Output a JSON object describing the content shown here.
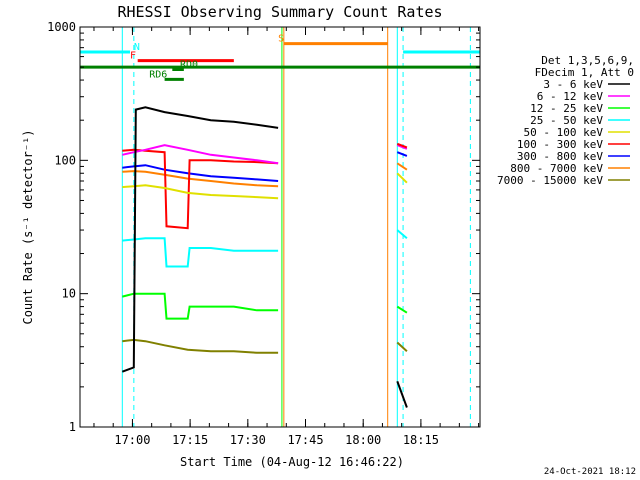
{
  "chart_data": {
    "type": "line",
    "title": "RHESSI Observing Summary Count Rates",
    "xlabel": "Start Time (04-Aug-12 16:46:22)",
    "ylabel": "Count Rate (s⁻¹ detector⁻¹)",
    "yscale": "log",
    "ylim": [
      1,
      1000
    ],
    "xlim_minutes": [
      0,
      104
    ],
    "x_tick_labels": [
      "17:00",
      "17:15",
      "17:30",
      "17:45",
      "18:00",
      "18:15"
    ],
    "x_tick_minutes": [
      13.633,
      28.633,
      43.633,
      58.633,
      73.633,
      88.633
    ],
    "y_tick_labels": [
      "1",
      "10",
      "100",
      "1000"
    ],
    "y_tick_values": [
      1,
      10,
      100,
      1000
    ],
    "grid": false,
    "legend": {
      "position": "right",
      "header": [
        "Det 1,3,5,6,9,",
        "FDecim 1, Att 0"
      ]
    },
    "series": [
      {
        "name": "3 - 6 keV",
        "color": "#000000",
        "x": [
          11,
          14,
          14.5,
          17,
          22,
          28,
          34,
          40,
          46,
          51.5
        ],
        "y": [
          2.6,
          2.8,
          240,
          250,
          230,
          215,
          200,
          195,
          185,
          175
        ]
      },
      {
        "name": "6 - 12 keV",
        "color": "#ff00ff",
        "x": [
          11,
          14,
          17,
          22,
          28,
          34,
          40,
          46,
          51.5
        ],
        "y": [
          110,
          115,
          120,
          130,
          120,
          110,
          105,
          100,
          95
        ]
      },
      {
        "name": "12 - 25 keV",
        "color": "#00ff00",
        "x": [
          11,
          14,
          16,
          22,
          22.5,
          28,
          28.5,
          34,
          40,
          46,
          51.5
        ],
        "y": [
          9.5,
          10,
          10,
          10,
          6.5,
          6.5,
          8,
          8,
          8,
          7.5,
          7.5
        ]
      },
      {
        "name": "25 - 50 keV",
        "color": "#00ffff",
        "x": [
          11,
          14,
          17,
          22,
          22.5,
          28,
          28.5,
          34,
          40,
          46,
          51.5
        ],
        "y": [
          25,
          25.5,
          26,
          26,
          16,
          16,
          22,
          22,
          21,
          21,
          21
        ]
      },
      {
        "name": "50 - 100 keV",
        "color": "#e0e000",
        "x": [
          11,
          14,
          17,
          22,
          28,
          34,
          40,
          46,
          51.5
        ],
        "y": [
          63,
          64,
          65,
          62,
          57,
          55,
          54,
          53,
          52
        ]
      },
      {
        "name": "100 - 300 keV",
        "color": "#ff0000",
        "x": [
          11,
          14,
          17,
          22,
          22.5,
          28,
          28.5,
          34,
          40,
          46,
          51.5
        ],
        "y": [
          118,
          120,
          118,
          115,
          32,
          31,
          100,
          100,
          98,
          97,
          95
        ]
      },
      {
        "name": "300 - 800 keV",
        "color": "#0000ff",
        "x": [
          11,
          14,
          17,
          22,
          28,
          34,
          40,
          46,
          51.5
        ],
        "y": [
          88,
          90,
          92,
          85,
          80,
          76,
          74,
          72,
          70
        ]
      },
      {
        "name": "800 - 7000 keV",
        "color": "#ff8000",
        "x": [
          11,
          14,
          17,
          22,
          28,
          34,
          40,
          46,
          51.5
        ],
        "y": [
          82,
          83,
          82,
          78,
          73,
          70,
          67,
          65,
          64
        ]
      },
      {
        "name": "7000 - 15000 keV",
        "color": "#808000",
        "x": [
          11,
          14,
          17,
          22,
          28,
          34,
          40,
          46,
          51.5
        ],
        "y": [
          4.4,
          4.5,
          4.4,
          4.1,
          3.8,
          3.7,
          3.7,
          3.6,
          3.6
        ]
      }
    ],
    "second_segment": [
      {
        "name": "3 - 6 keV",
        "x": [
          82.5,
          85
        ],
        "y": [
          2.2,
          1.4
        ]
      },
      {
        "name": "6 - 12 keV",
        "x": [
          82.5,
          85
        ],
        "y": [
          130,
          122
        ]
      },
      {
        "name": "12 - 25 keV",
        "x": [
          82.5,
          85
        ],
        "y": [
          8,
          7.2
        ]
      },
      {
        "name": "25 - 50 keV",
        "x": [
          82.5,
          85
        ],
        "y": [
          30,
          26
        ]
      },
      {
        "name": "50 - 100 keV",
        "x": [
          82.5,
          85
        ],
        "y": [
          80,
          68
        ]
      },
      {
        "name": "100 - 300 keV",
        "x": [
          82.5,
          85
        ],
        "y": [
          133,
          125
        ]
      },
      {
        "name": "300 - 800 keV",
        "x": [
          82.5,
          85
        ],
        "y": [
          115,
          108
        ]
      },
      {
        "name": "800 - 7000 keV",
        "x": [
          82.5,
          85
        ],
        "y": [
          95,
          85
        ]
      },
      {
        "name": "7000 - 15000 keV",
        "x": [
          82.5,
          85
        ],
        "y": [
          4.3,
          3.7
        ]
      }
    ],
    "flag_bars": [
      {
        "label": "N",
        "color": "#00ffff",
        "segments": [
          [
            0,
            13
          ],
          [
            84,
            104
          ]
        ],
        "y": 650,
        "label_x": 14
      },
      {
        "label": "F",
        "color": "#ff0000",
        "segments": [
          [
            15,
            40
          ]
        ],
        "y": 560,
        "label_x": 13
      },
      {
        "label": "S",
        "color": "#ff8000",
        "segments": [
          [
            53,
            80
          ]
        ],
        "y": 750,
        "label_x": 51.5
      },
      {
        "label": "RD0",
        "color": "#008000",
        "segments": [
          [
            24,
            27
          ]
        ],
        "y": 480,
        "label_x": 26
      },
      {
        "label": "RD6",
        "color": "#008000",
        "segments": [
          [
            22,
            27
          ]
        ],
        "y": 405,
        "label_x": 18
      },
      {
        "label": "",
        "color": "#008000",
        "segments": [
          [
            0,
            104
          ]
        ],
        "y": 500,
        "label_x": 0
      }
    ],
    "vertical_markers": [
      {
        "x": 14,
        "color": "#00ffff",
        "dashed": true
      },
      {
        "x": 84,
        "color": "#00ffff",
        "dashed": true
      },
      {
        "x": 101.5,
        "color": "#00ffff",
        "dashed": true
      },
      {
        "x": 11,
        "color": "#00ffff",
        "dashed": false
      },
      {
        "x": 82.5,
        "color": "#00ffff",
        "dashed": false
      },
      {
        "x": 53,
        "color": "#ff8000",
        "dashed": false
      },
      {
        "x": 80,
        "color": "#ff8000",
        "dashed": false
      },
      {
        "x": 52.5,
        "color": "#00ff00",
        "dashed": false
      }
    ]
  },
  "footer": {
    "timestamp": "24-Oct-2021 18:12"
  }
}
